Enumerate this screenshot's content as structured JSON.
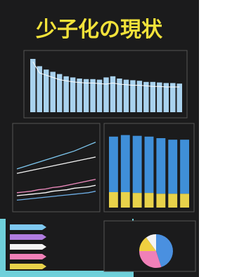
{
  "title": "少子化の現状",
  "birth_panel": {
    "ylim": [
      0,
      100
    ],
    "bars": [
      95,
      82,
      76,
      72,
      68,
      64,
      62,
      60,
      59,
      59,
      58,
      62,
      64,
      60,
      58,
      57,
      56,
      54,
      54,
      53,
      52,
      52,
      51
    ],
    "line": [
      90,
      70,
      66,
      62,
      58,
      56,
      54,
      53,
      52,
      52,
      51,
      50,
      52,
      50,
      49,
      48,
      48,
      47,
      46,
      46,
      45,
      45,
      45
    ]
  },
  "trend_panel": {
    "ylim": [
      0,
      100
    ],
    "series": [
      {
        "color": "#7ec8f0",
        "values": [
          52,
          55,
          58,
          61,
          64,
          67,
          70,
          73,
          76,
          80,
          84,
          88
        ]
      },
      {
        "color": "#f4f4f4",
        "values": [
          46,
          48,
          50,
          52,
          54,
          56,
          58,
          60,
          62,
          64,
          66,
          68
        ]
      },
      {
        "color": "#f08cc0",
        "values": [
          20,
          21,
          22,
          24,
          25,
          27,
          28,
          30,
          32,
          34,
          36,
          38
        ]
      },
      {
        "color": "#ffffff",
        "values": [
          16,
          17,
          18,
          19,
          20,
          22,
          23,
          24,
          26,
          27,
          28,
          30
        ]
      },
      {
        "color": "#6fb0e8",
        "values": [
          10,
          11,
          12,
          13,
          14,
          15,
          16,
          17,
          18,
          19,
          20,
          22
        ]
      }
    ]
  },
  "stack_panel": {
    "ylim": [
      0,
      100
    ],
    "segments": [
      {
        "color": "#e8d24a",
        "values": [
          20,
          20,
          19,
          19,
          18,
          18,
          18
        ]
      },
      {
        "color": "#3f8fd8",
        "values": [
          72,
          74,
          74,
          73,
          72,
          70,
          70
        ]
      }
    ]
  },
  "pie_panel": {
    "colors": [
      "#4a90e0",
      "#f080b8",
      "#f0d040",
      "#f4f4f4"
    ],
    "values": [
      45,
      30,
      15,
      10
    ]
  }
}
